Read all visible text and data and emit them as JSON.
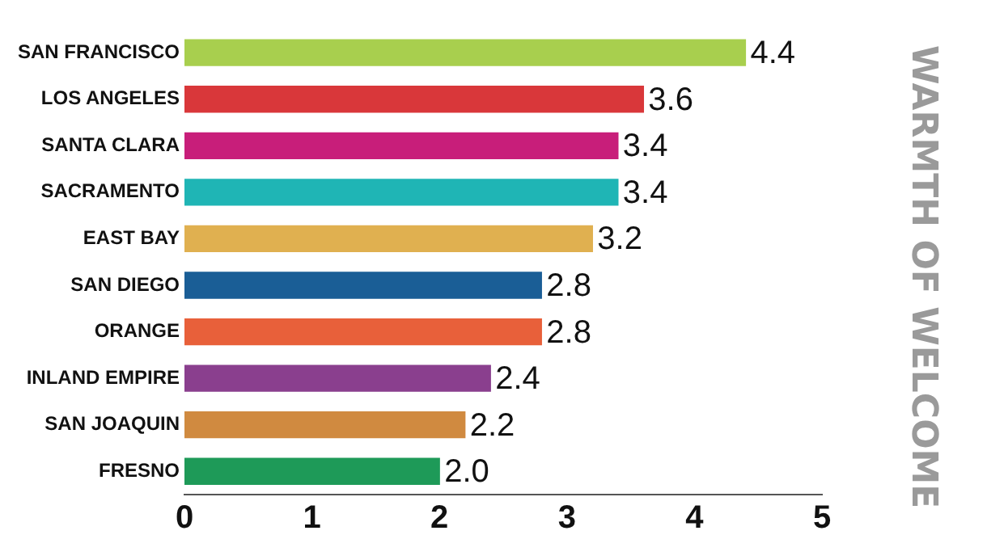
{
  "chart_data": {
    "type": "bar",
    "orientation": "horizontal",
    "ylabel": "WARMTH OF WELCOME",
    "categories": [
      "SAN FRANCISCO",
      "LOS ANGELES",
      "SANTA CLARA",
      "SACRAMENTO",
      "EAST BAY",
      "SAN DIEGO",
      "ORANGE",
      "INLAND EMPIRE",
      "SAN JOAQUIN",
      "FRESNO"
    ],
    "values": [
      4.4,
      3.6,
      3.4,
      3.4,
      3.2,
      2.8,
      2.8,
      2.4,
      2.2,
      2.0
    ],
    "colors": [
      "#a8cf4e",
      "#d9373a",
      "#c81e7a",
      "#1fb5b5",
      "#e0b050",
      "#1a5e96",
      "#e8603a",
      "#8a3f8e",
      "#d08a40",
      "#1e9a58"
    ],
    "xlim": [
      0,
      5
    ],
    "xticks": [
      0,
      1,
      2,
      3,
      4,
      5
    ],
    "grid": false,
    "legend": false,
    "value_labels": [
      "4.4",
      "3.6",
      "3.4",
      "3.4",
      "3.2",
      "2.8",
      "2.8",
      "2.4",
      "2.2",
      "2.0"
    ]
  }
}
